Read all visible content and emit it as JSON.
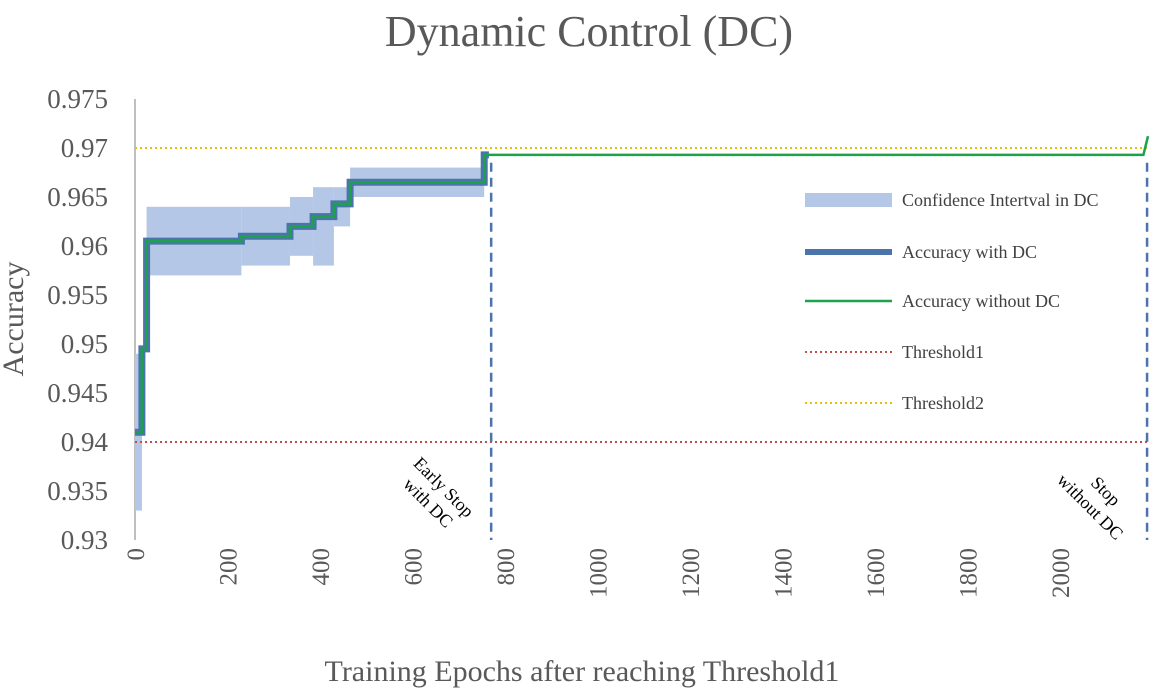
{
  "chart_data": {
    "type": "line",
    "title": "Dynamic Control (DC)",
    "xlabel": "Training Epochs after reaching Threshold1",
    "ylabel": "Accuracy",
    "xlim": [
      0,
      2190
    ],
    "ylim": [
      0.93,
      0.975
    ],
    "x_ticks": [
      0,
      200,
      400,
      600,
      800,
      1000,
      1200,
      1400,
      1600,
      1800,
      2000
    ],
    "y_ticks": [
      0.93,
      0.935,
      0.94,
      0.945,
      0.95,
      0.955,
      0.96,
      0.965,
      0.97,
      0.975
    ],
    "y_tick_labels": [
      "0.93",
      "0.935",
      "0.94",
      "0.945",
      "0.95",
      "0.955",
      "0.96",
      "0.965",
      "0.97",
      "0.975"
    ],
    "grid": false,
    "legend_position": "right",
    "colors": {
      "confidence": "#b4c7e7",
      "with_dc": "#4a74aa",
      "without_dc": "#1ca24a",
      "threshold1": "#c0504d",
      "threshold2": "#e8c100",
      "stop_line": "#4a74aa"
    },
    "series": [
      {
        "name": "Accuracy with DC",
        "x": [
          0,
          15,
          15,
          25,
          25,
          230,
          230,
          335,
          335,
          385,
          385,
          430,
          430,
          465,
          465,
          755,
          755,
          765
        ],
        "y": [
          0.941,
          0.941,
          0.9495,
          0.9495,
          0.9605,
          0.9605,
          0.961,
          0.961,
          0.962,
          0.962,
          0.963,
          0.963,
          0.9643,
          0.9643,
          0.9665,
          0.9665,
          0.9693,
          0.9693
        ]
      },
      {
        "name": "Accuracy without DC",
        "x": [
          0,
          15,
          15,
          25,
          25,
          230,
          230,
          335,
          335,
          385,
          385,
          430,
          430,
          465,
          465,
          755,
          755,
          2180,
          2190
        ],
        "y": [
          0.941,
          0.941,
          0.9495,
          0.9495,
          0.9605,
          0.9605,
          0.961,
          0.961,
          0.962,
          0.962,
          0.963,
          0.963,
          0.9643,
          0.9643,
          0.9665,
          0.9665,
          0.9693,
          0.9693,
          0.9712
        ]
      },
      {
        "name": "Confidence Intertval in DC",
        "band": [
          {
            "x0": 0,
            "x1": 15,
            "low": 0.933,
            "high": 0.949
          },
          {
            "x0": 15,
            "x1": 25,
            "low": 0.9495,
            "high": 0.9495
          },
          {
            "x0": 25,
            "x1": 230,
            "low": 0.957,
            "high": 0.964
          },
          {
            "x0": 230,
            "x1": 335,
            "low": 0.958,
            "high": 0.964
          },
          {
            "x0": 335,
            "x1": 385,
            "low": 0.959,
            "high": 0.965
          },
          {
            "x0": 385,
            "x1": 430,
            "low": 0.958,
            "high": 0.966
          },
          {
            "x0": 430,
            "x1": 465,
            "low": 0.962,
            "high": 0.966
          },
          {
            "x0": 465,
            "x1": 755,
            "low": 0.965,
            "high": 0.968
          }
        ]
      }
    ],
    "thresholds": [
      {
        "name": "Threshold1",
        "y": 0.94
      },
      {
        "name": "Threshold2",
        "y": 0.97
      }
    ],
    "stop_lines": [
      {
        "name": "Early Stop with DC",
        "x": 770
      },
      {
        "name": "Stop without DC",
        "x": 2188
      }
    ],
    "legend": [
      "Confidence Intertval in DC",
      "Accuracy with DC",
      "Accuracy without DC",
      "Threshold1",
      "Threshold2"
    ],
    "annotations": [
      {
        "lines": [
          "Early Stop",
          "with DC"
        ]
      },
      {
        "lines": [
          "Stop",
          "without DC"
        ]
      }
    ]
  }
}
